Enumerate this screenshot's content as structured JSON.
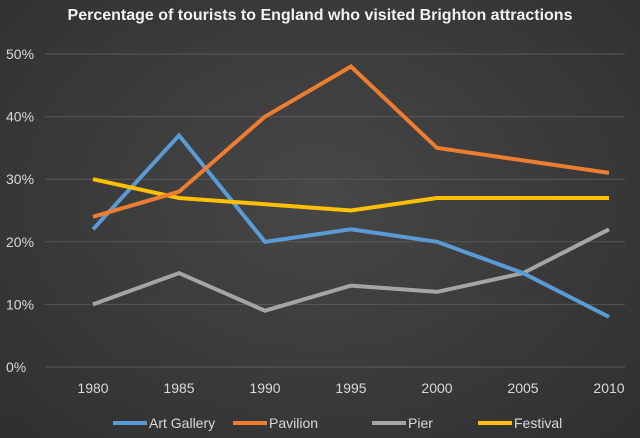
{
  "chart_data": {
    "type": "line",
    "title": "Percentage of tourists to England who visited Brighton attractions",
    "xlabel": "",
    "ylabel": "",
    "categories": [
      "1980",
      "1985",
      "1990",
      "1995",
      "2000",
      "2005",
      "2010"
    ],
    "ylim": [
      0,
      50
    ],
    "yticks": [
      "0%",
      "10%",
      "20%",
      "30%",
      "40%",
      "50%"
    ],
    "grid": true,
    "legend_position": "bottom",
    "series": [
      {
        "name": "Art Gallery",
        "color": "#5b9bd5",
        "values": [
          22,
          37,
          20,
          22,
          20,
          15,
          8
        ]
      },
      {
        "name": "Pavilion",
        "color": "#ed7d31",
        "values": [
          24,
          28,
          40,
          48,
          35,
          33,
          31
        ]
      },
      {
        "name": "Pier",
        "color": "#a5a5a5",
        "values": [
          10,
          15,
          9,
          13,
          12,
          15,
          22
        ]
      },
      {
        "name": "Festival",
        "color": "#ffc000",
        "values": [
          30,
          27,
          26,
          25,
          27,
          27,
          27
        ]
      }
    ]
  }
}
